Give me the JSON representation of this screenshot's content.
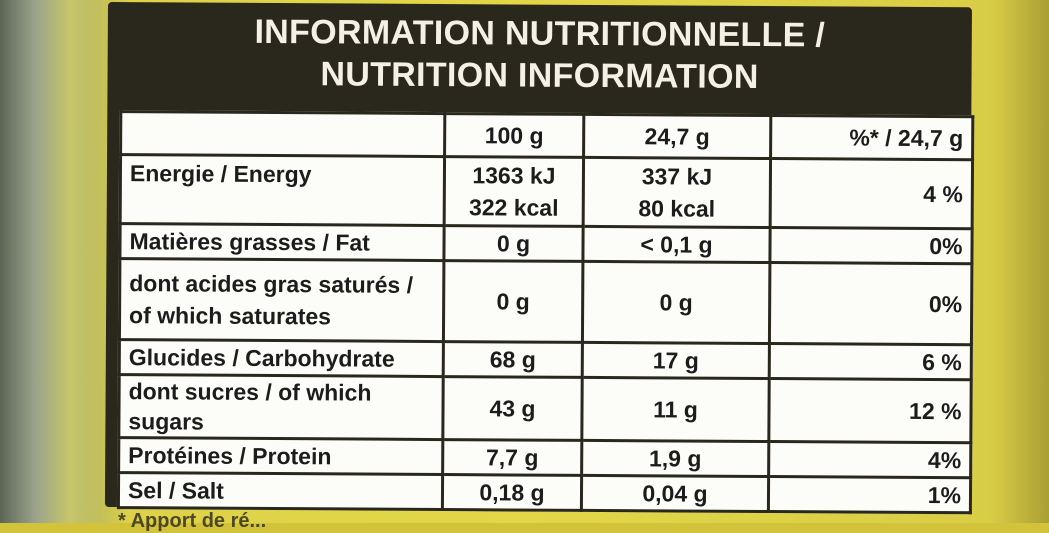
{
  "header": {
    "title_fr": "INFORMATION NUTRITIONNELLE /",
    "title_en": "NUTRITION INFORMATION"
  },
  "columns": [
    "",
    "100 g",
    "24,7 g",
    "%* / 24,7 g"
  ],
  "rows": [
    {
      "label": "Energie / Energy",
      "per100_kj": "1363 kJ",
      "per100_kcal": "322 kcal",
      "portion_kj": "337 kJ",
      "portion_kcal": "80 kcal",
      "pct": "4 %"
    },
    {
      "label": "Matières grasses / Fat",
      "per100": "0 g",
      "portion": "< 0,1 g",
      "pct": "0%"
    },
    {
      "label_line1": "dont acides gras saturés /",
      "label_line2": "of which saturates",
      "per100": "0 g",
      "portion": "0 g",
      "pct": "0%"
    },
    {
      "label": "Glucides / Carbohydrate",
      "per100": "68 g",
      "portion": "17 g",
      "pct": "6 %"
    },
    {
      "label": "dont sucres / of which sugars",
      "per100": "43 g",
      "portion": "11 g",
      "pct": "12 %"
    },
    {
      "label": "Protéines / Protein",
      "per100": "7,7 g",
      "portion": "1,9 g",
      "pct": "4%"
    },
    {
      "label": "Sel / Salt",
      "per100": "0,18 g",
      "portion": "0,04 g",
      "pct": "1%"
    }
  ],
  "footnote": "* Apport de ré..."
}
